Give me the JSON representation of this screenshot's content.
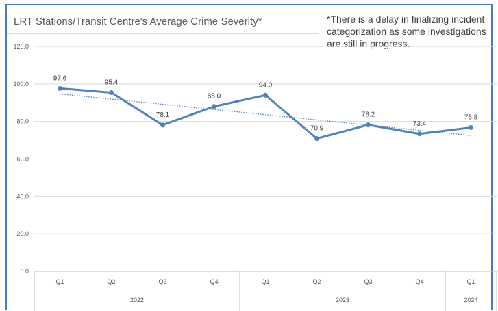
{
  "chart_data": {
    "type": "line",
    "title": "LRT Stations/Transit Centre's Average  Crime Severity*",
    "note": "*There is a delay in finalizing incident categorization as some investigations are still in progress.",
    "categories": [
      "Q1",
      "Q2",
      "Q3",
      "Q4",
      "Q1",
      "Q2",
      "Q3",
      "Q4",
      "Q1"
    ],
    "year_groups": [
      {
        "label": "2022",
        "count": 4
      },
      {
        "label": "2023",
        "count": 4
      },
      {
        "label": "2024",
        "count": 1
      }
    ],
    "series": [
      {
        "values": [
          97.6,
          95.4,
          78.1,
          88.0,
          94.0,
          70.9,
          78.2,
          73.4,
          76.8
        ],
        "color": "#4f81bd"
      }
    ],
    "data_labels": [
      "97.6",
      "95.4",
      "78.1",
      "88.0",
      "94.0",
      "70.9",
      "78.2",
      "73.4",
      "76.8"
    ],
    "trendline": {
      "type": "linear",
      "style": "dotted",
      "color": "#4f81bd"
    },
    "yticks": [
      "0.0",
      "20.0",
      "40.0",
      "60.0",
      "80.0",
      "100.0",
      "120.0"
    ],
    "ylim": [
      0,
      120
    ],
    "xlabel": "",
    "ylabel": "",
    "grid": true
  }
}
